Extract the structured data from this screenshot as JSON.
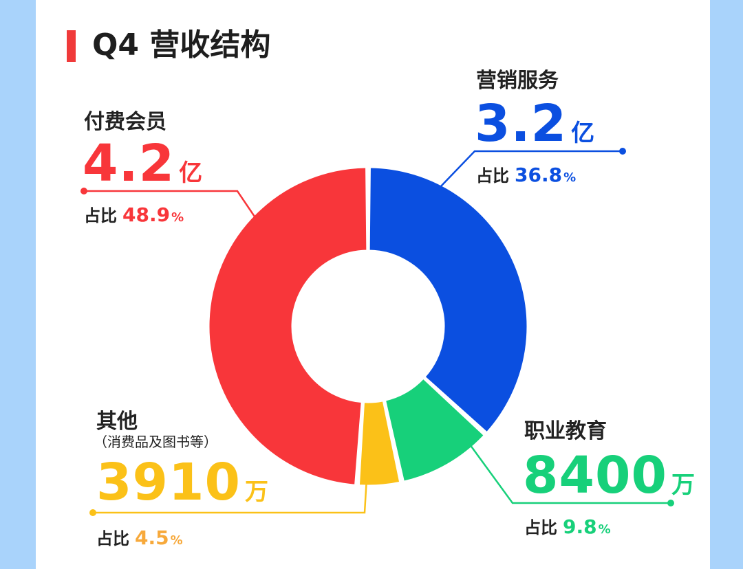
{
  "title": "Q4 营收结构",
  "share_label": "占比",
  "chart_data": {
    "type": "pie",
    "donut": true,
    "title": "Q4 营收结构",
    "slices": [
      {
        "name": "营销服务",
        "value": 3.2,
        "unit": "亿",
        "share": 36.8,
        "display": "3.2",
        "color": "#0b4fe0"
      },
      {
        "name": "职业教育",
        "value": 8400,
        "unit": "万",
        "share": 9.8,
        "display": "8400",
        "color": "#17d07a"
      },
      {
        "name": "其他",
        "note": "（消费品及图书等）",
        "value": 3910,
        "unit": "万",
        "share": 4.5,
        "display": "3910",
        "color": "#fbc118"
      },
      {
        "name": "付费会员",
        "value": 4.2,
        "unit": "亿",
        "share": 48.9,
        "display": "4.2",
        "color": "#f8363a"
      }
    ]
  },
  "colors": {
    "title_accent": "#f03a3a",
    "background": "#a9d3fb",
    "pct_other": "#f7a93b"
  }
}
